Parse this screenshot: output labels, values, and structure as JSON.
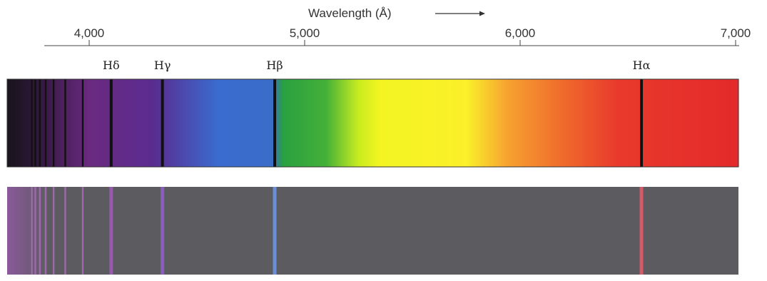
{
  "axis": {
    "title": "Wavelength (Å)",
    "range": [
      3650,
      7000
    ],
    "ticks": [
      {
        "value": 4000,
        "label": "4,000"
      },
      {
        "value": 5000,
        "label": "5,000"
      },
      {
        "value": 6000,
        "label": "6,000"
      },
      {
        "value": 7000,
        "label": "7,000"
      }
    ]
  },
  "balmer_lines": [
    {
      "name": "Hα",
      "wavelength": 6563,
      "emission_color": "#d45a6a"
    },
    {
      "name": "Hβ",
      "wavelength": 4861,
      "emission_color": "#6a8fd8"
    },
    {
      "name": "Hγ",
      "wavelength": 4340,
      "emission_color": "#8a5cc0"
    },
    {
      "name": "Hδ",
      "wavelength": 4102,
      "emission_color": "#9a58b0"
    }
  ],
  "unlabeled_lines": [
    3970,
    3889,
    3835,
    3798,
    3771,
    3750,
    3734
  ],
  "spectra": {
    "absorption": {
      "line_color": "#111111",
      "gradient": [
        {
          "wavelength": 3650,
          "color": "#1c1420"
        },
        {
          "wavelength": 3800,
          "color": "#3a1a48"
        },
        {
          "wavelength": 4000,
          "color": "#6a2a80"
        },
        {
          "wavelength": 4300,
          "color": "#5a2c90"
        },
        {
          "wavelength": 4450,
          "color": "#4a4cb0"
        },
        {
          "wavelength": 4600,
          "color": "#3a6cd0"
        },
        {
          "wavelength": 4850,
          "color": "#3a6cc8"
        },
        {
          "wavelength": 4900,
          "color": "#2aa040"
        },
        {
          "wavelength": 5100,
          "color": "#44b038"
        },
        {
          "wavelength": 5250,
          "color": "#c8ec20"
        },
        {
          "wavelength": 5350,
          "color": "#f4f422"
        },
        {
          "wavelength": 5750,
          "color": "#fbf02a"
        },
        {
          "wavelength": 5950,
          "color": "#f6a030"
        },
        {
          "wavelength": 6200,
          "color": "#f06a2c"
        },
        {
          "wavelength": 6450,
          "color": "#e83a2c"
        },
        {
          "wavelength": 7000,
          "color": "#e42a2a"
        }
      ]
    },
    "emission": {
      "background": "#5b5b60",
      "violet_edge": "#8a5a9a"
    }
  }
}
